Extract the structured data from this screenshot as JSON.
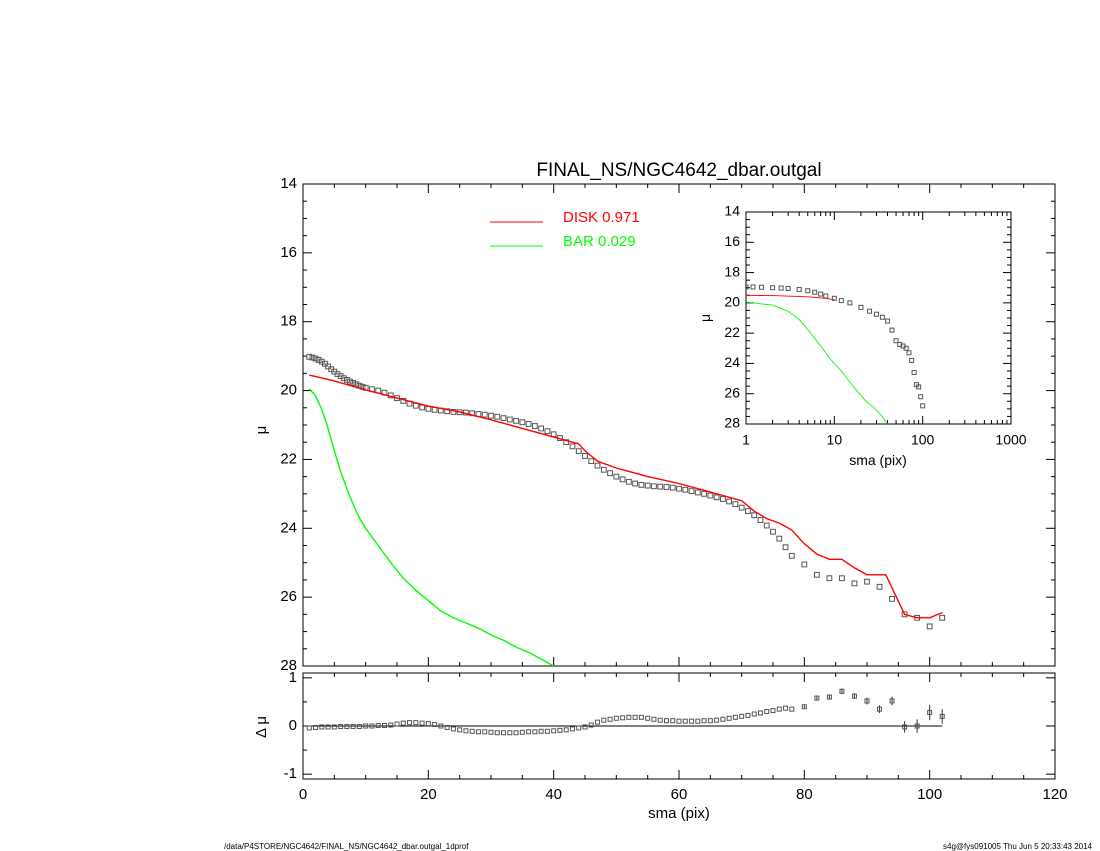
{
  "footer": {
    "left": "/data/P4STORE/NGC4642/FINAL_NS/NGC4642_dbar.outgal_1dprof",
    "right": "s4g@fys091005  Thu Jun  5 20:33:43 2014"
  },
  "chart_data": [
    {
      "type": "line",
      "title": "FINAL_NS/NGC4642_dbar.outgal",
      "xlabel": "",
      "ylabel": "μ",
      "xlim": [
        0,
        120
      ],
      "ylim": [
        28,
        14
      ],
      "yticks": [
        "14",
        "16",
        "18",
        "20",
        "22",
        "24",
        "26",
        "28"
      ],
      "legend": {
        "placement": "top-center",
        "entries": [
          {
            "label": "DISK  0.971",
            "color": "#ff0000"
          },
          {
            "label": "BAR  0.029",
            "color": "#00ff00"
          }
        ]
      },
      "series": [
        {
          "name": "data",
          "kind": "points",
          "color": "#555555",
          "x": [
            1,
            1.5,
            2,
            2.5,
            3,
            3.5,
            4,
            4.5,
            5,
            5.5,
            6,
            6.5,
            7,
            7.5,
            8,
            8.5,
            9,
            9.5,
            10,
            11,
            12,
            13,
            14,
            15,
            16,
            17,
            18,
            19,
            20,
            21,
            22,
            23,
            24,
            25,
            26,
            27,
            28,
            29,
            30,
            31,
            32,
            33,
            34,
            35,
            36,
            37,
            38,
            39,
            40,
            41,
            42,
            43,
            44,
            45,
            46,
            47,
            48,
            49,
            50,
            51,
            52,
            53,
            54,
            55,
            56,
            57,
            58,
            59,
            60,
            61,
            62,
            63,
            64,
            65,
            66,
            67,
            68,
            69,
            70,
            71,
            72,
            73,
            74,
            75,
            76,
            77,
            78,
            80,
            82,
            84,
            86,
            88,
            90,
            92,
            94,
            96,
            98,
            100,
            102
          ],
          "y": [
            19.02,
            19.04,
            19.07,
            19.11,
            19.16,
            19.22,
            19.3,
            19.38,
            19.45,
            19.52,
            19.58,
            19.64,
            19.69,
            19.74,
            19.78,
            19.82,
            19.86,
            19.89,
            19.92,
            19.96,
            20.0,
            20.06,
            20.14,
            20.22,
            20.3,
            20.38,
            20.44,
            20.49,
            20.53,
            20.56,
            20.58,
            20.6,
            20.62,
            20.63,
            20.64,
            20.66,
            20.68,
            20.7,
            20.73,
            20.76,
            20.8,
            20.84,
            20.88,
            20.92,
            20.97,
            21.03,
            21.1,
            21.18,
            21.27,
            21.38,
            21.5,
            21.62,
            21.76,
            21.9,
            22.05,
            22.18,
            22.3,
            22.4,
            22.5,
            22.58,
            22.65,
            22.7,
            22.74,
            22.76,
            22.78,
            22.79,
            22.8,
            22.82,
            22.85,
            22.88,
            22.92,
            22.96,
            23.0,
            23.05,
            23.1,
            23.15,
            23.22,
            23.3,
            23.4,
            23.5,
            23.62,
            23.76,
            23.92,
            24.1,
            24.3,
            24.55,
            24.8,
            25.05,
            25.35,
            25.45,
            25.45,
            25.6,
            25.55,
            25.7,
            26.05,
            26.5,
            26.6,
            26.85,
            26.6
          ]
        },
        {
          "name": "DISK  0.971",
          "kind": "line",
          "color": "#ff0000",
          "x": [
            1,
            5,
            10,
            15,
            20,
            25,
            30,
            35,
            40,
            44,
            45,
            46,
            47,
            50,
            55,
            60,
            65,
            70,
            72,
            74,
            76,
            78,
            80,
            82,
            84,
            86,
            88,
            90,
            92,
            93,
            96,
            98,
            100,
            102
          ],
          "y": [
            19.55,
            19.72,
            19.98,
            20.22,
            20.45,
            20.62,
            20.85,
            21.1,
            21.35,
            21.55,
            21.75,
            21.9,
            22.05,
            22.25,
            22.5,
            22.7,
            22.95,
            23.2,
            23.5,
            23.72,
            23.85,
            24.05,
            24.45,
            24.75,
            24.9,
            24.9,
            25.15,
            25.35,
            25.35,
            25.35,
            26.5,
            26.6,
            26.6,
            26.45
          ]
        },
        {
          "name": "BAR  0.029",
          "kind": "line",
          "color": "#00ff00",
          "x": [
            1,
            2,
            3,
            4,
            5,
            6,
            7,
            8,
            9,
            10,
            12,
            14,
            16,
            18,
            20,
            22,
            24,
            26,
            28,
            30,
            32,
            34,
            36,
            38,
            40
          ],
          "y": [
            19.95,
            20.15,
            20.55,
            21.1,
            21.75,
            22.35,
            22.85,
            23.3,
            23.7,
            24.0,
            24.5,
            25.0,
            25.45,
            25.8,
            26.1,
            26.4,
            26.6,
            26.75,
            26.9,
            27.1,
            27.25,
            27.45,
            27.6,
            27.8,
            28.0
          ]
        }
      ]
    },
    {
      "type": "scatter",
      "title": "",
      "xlabel": "sma (pix)",
      "ylabel": "Δ μ",
      "xlim": [
        0,
        120
      ],
      "ylim": [
        -1.1,
        1.1
      ],
      "xticks": [
        "0",
        "20",
        "40",
        "60",
        "80",
        "100",
        "120"
      ],
      "yticks": [
        "1",
        "0",
        "-1"
      ],
      "reference_line": 0,
      "series": [
        {
          "name": "residuals",
          "kind": "points",
          "color": "#555555",
          "x": [
            1,
            2,
            3,
            4,
            5,
            6,
            7,
            8,
            9,
            10,
            11,
            12,
            13,
            14,
            15,
            16,
            17,
            18,
            19,
            20,
            21,
            22,
            23,
            24,
            25,
            26,
            27,
            28,
            29,
            30,
            31,
            32,
            33,
            34,
            35,
            36,
            37,
            38,
            39,
            40,
            41,
            42,
            43,
            44,
            45,
            46,
            47,
            48,
            49,
            50,
            51,
            52,
            53,
            54,
            55,
            56,
            57,
            58,
            59,
            60,
            61,
            62,
            63,
            64,
            65,
            66,
            67,
            68,
            69,
            70,
            71,
            72,
            73,
            74,
            75,
            76,
            77,
            78,
            80,
            82,
            84,
            86,
            88,
            90,
            92,
            94,
            96,
            98,
            100,
            102
          ],
          "y": [
            -0.04,
            -0.03,
            -0.02,
            -0.02,
            -0.02,
            -0.01,
            -0.01,
            -0.01,
            -0.01,
            0.0,
            0.0,
            0.01,
            0.01,
            0.02,
            0.04,
            0.06,
            0.07,
            0.07,
            0.06,
            0.05,
            0.03,
            0.0,
            -0.03,
            -0.06,
            -0.08,
            -0.1,
            -0.11,
            -0.12,
            -0.12,
            -0.13,
            -0.14,
            -0.14,
            -0.14,
            -0.14,
            -0.13,
            -0.12,
            -0.12,
            -0.11,
            -0.11,
            -0.1,
            -0.09,
            -0.08,
            -0.06,
            -0.04,
            -0.02,
            0.02,
            0.08,
            0.12,
            0.14,
            0.16,
            0.17,
            0.18,
            0.18,
            0.18,
            0.16,
            0.14,
            0.12,
            0.11,
            0.11,
            0.1,
            0.1,
            0.1,
            0.1,
            0.11,
            0.11,
            0.12,
            0.14,
            0.16,
            0.18,
            0.2,
            0.22,
            0.25,
            0.27,
            0.3,
            0.32,
            0.35,
            0.37,
            0.35,
            0.4,
            0.58,
            0.6,
            0.72,
            0.62,
            0.52,
            0.35,
            0.52,
            -0.02,
            0.0,
            0.28,
            0.2
          ],
          "err": [
            0.01,
            0.01,
            0.01,
            0.01,
            0.01,
            0.01,
            0.01,
            0.01,
            0.01,
            0.01,
            0.01,
            0.01,
            0.01,
            0.01,
            0.01,
            0.01,
            0.01,
            0.01,
            0.01,
            0.01,
            0.01,
            0.01,
            0.01,
            0.01,
            0.01,
            0.01,
            0.01,
            0.01,
            0.01,
            0.01,
            0.01,
            0.01,
            0.01,
            0.01,
            0.01,
            0.01,
            0.01,
            0.01,
            0.01,
            0.01,
            0.01,
            0.01,
            0.01,
            0.01,
            0.01,
            0.01,
            0.01,
            0.01,
            0.01,
            0.01,
            0.01,
            0.01,
            0.01,
            0.01,
            0.01,
            0.01,
            0.01,
            0.01,
            0.01,
            0.01,
            0.01,
            0.01,
            0.01,
            0.01,
            0.01,
            0.01,
            0.01,
            0.01,
            0.01,
            0.01,
            0.01,
            0.01,
            0.01,
            0.01,
            0.01,
            0.01,
            0.01,
            0.02,
            0.03,
            0.04,
            0.05,
            0.06,
            0.06,
            0.07,
            0.08,
            0.09,
            0.12,
            0.14,
            0.16,
            0.15
          ]
        }
      ]
    },
    {
      "type": "line",
      "title": "",
      "xlabel": "sma (pix)",
      "ylabel": "μ",
      "xscale": "log",
      "xlim": [
        1,
        1000
      ],
      "ylim": [
        28,
        14
      ],
      "xticks": [
        "1",
        "10",
        "100",
        "1000"
      ],
      "yticks": [
        "14",
        "16",
        "18",
        "20",
        "22",
        "24",
        "26",
        "28"
      ],
      "series": [
        {
          "name": "data",
          "kind": "points",
          "color": "#555555",
          "x": [
            1,
            1.2,
            1.5,
            2,
            2.5,
            3,
            4,
            5,
            6,
            7,
            8,
            10,
            12,
            15,
            20,
            25,
            30,
            35,
            40,
            45,
            50,
            55,
            60,
            65,
            70,
            75,
            80,
            85,
            90,
            95,
            100
          ],
          "y": [
            18.95,
            18.95,
            18.97,
            19.0,
            19.02,
            19.05,
            19.12,
            19.2,
            19.3,
            19.42,
            19.55,
            19.7,
            19.85,
            20.0,
            20.3,
            20.55,
            20.75,
            20.95,
            21.2,
            21.8,
            22.5,
            22.75,
            22.85,
            23.0,
            23.3,
            23.8,
            24.6,
            25.4,
            25.55,
            26.2,
            26.8
          ]
        },
        {
          "name": "DISK  0.971",
          "kind": "line",
          "color": "#ff0000",
          "x": [
            1,
            2,
            5,
            8,
            10
          ],
          "y": [
            19.5,
            19.52,
            19.6,
            19.7,
            19.8
          ]
        },
        {
          "name": "BAR  0.029",
          "kind": "line",
          "color": "#00ff00",
          "x": [
            1,
            2,
            3,
            4,
            5,
            6,
            7,
            8,
            9,
            10,
            12,
            14,
            16,
            18,
            20,
            22,
            24,
            26,
            28,
            30,
            32,
            34,
            36,
            38,
            40
          ],
          "y": [
            19.95,
            20.15,
            20.55,
            21.1,
            21.75,
            22.35,
            22.85,
            23.3,
            23.7,
            24.0,
            24.5,
            25.0,
            25.45,
            25.8,
            26.1,
            26.4,
            26.6,
            26.75,
            26.9,
            27.1,
            27.25,
            27.45,
            27.6,
            27.8,
            28.0
          ]
        }
      ]
    }
  ]
}
